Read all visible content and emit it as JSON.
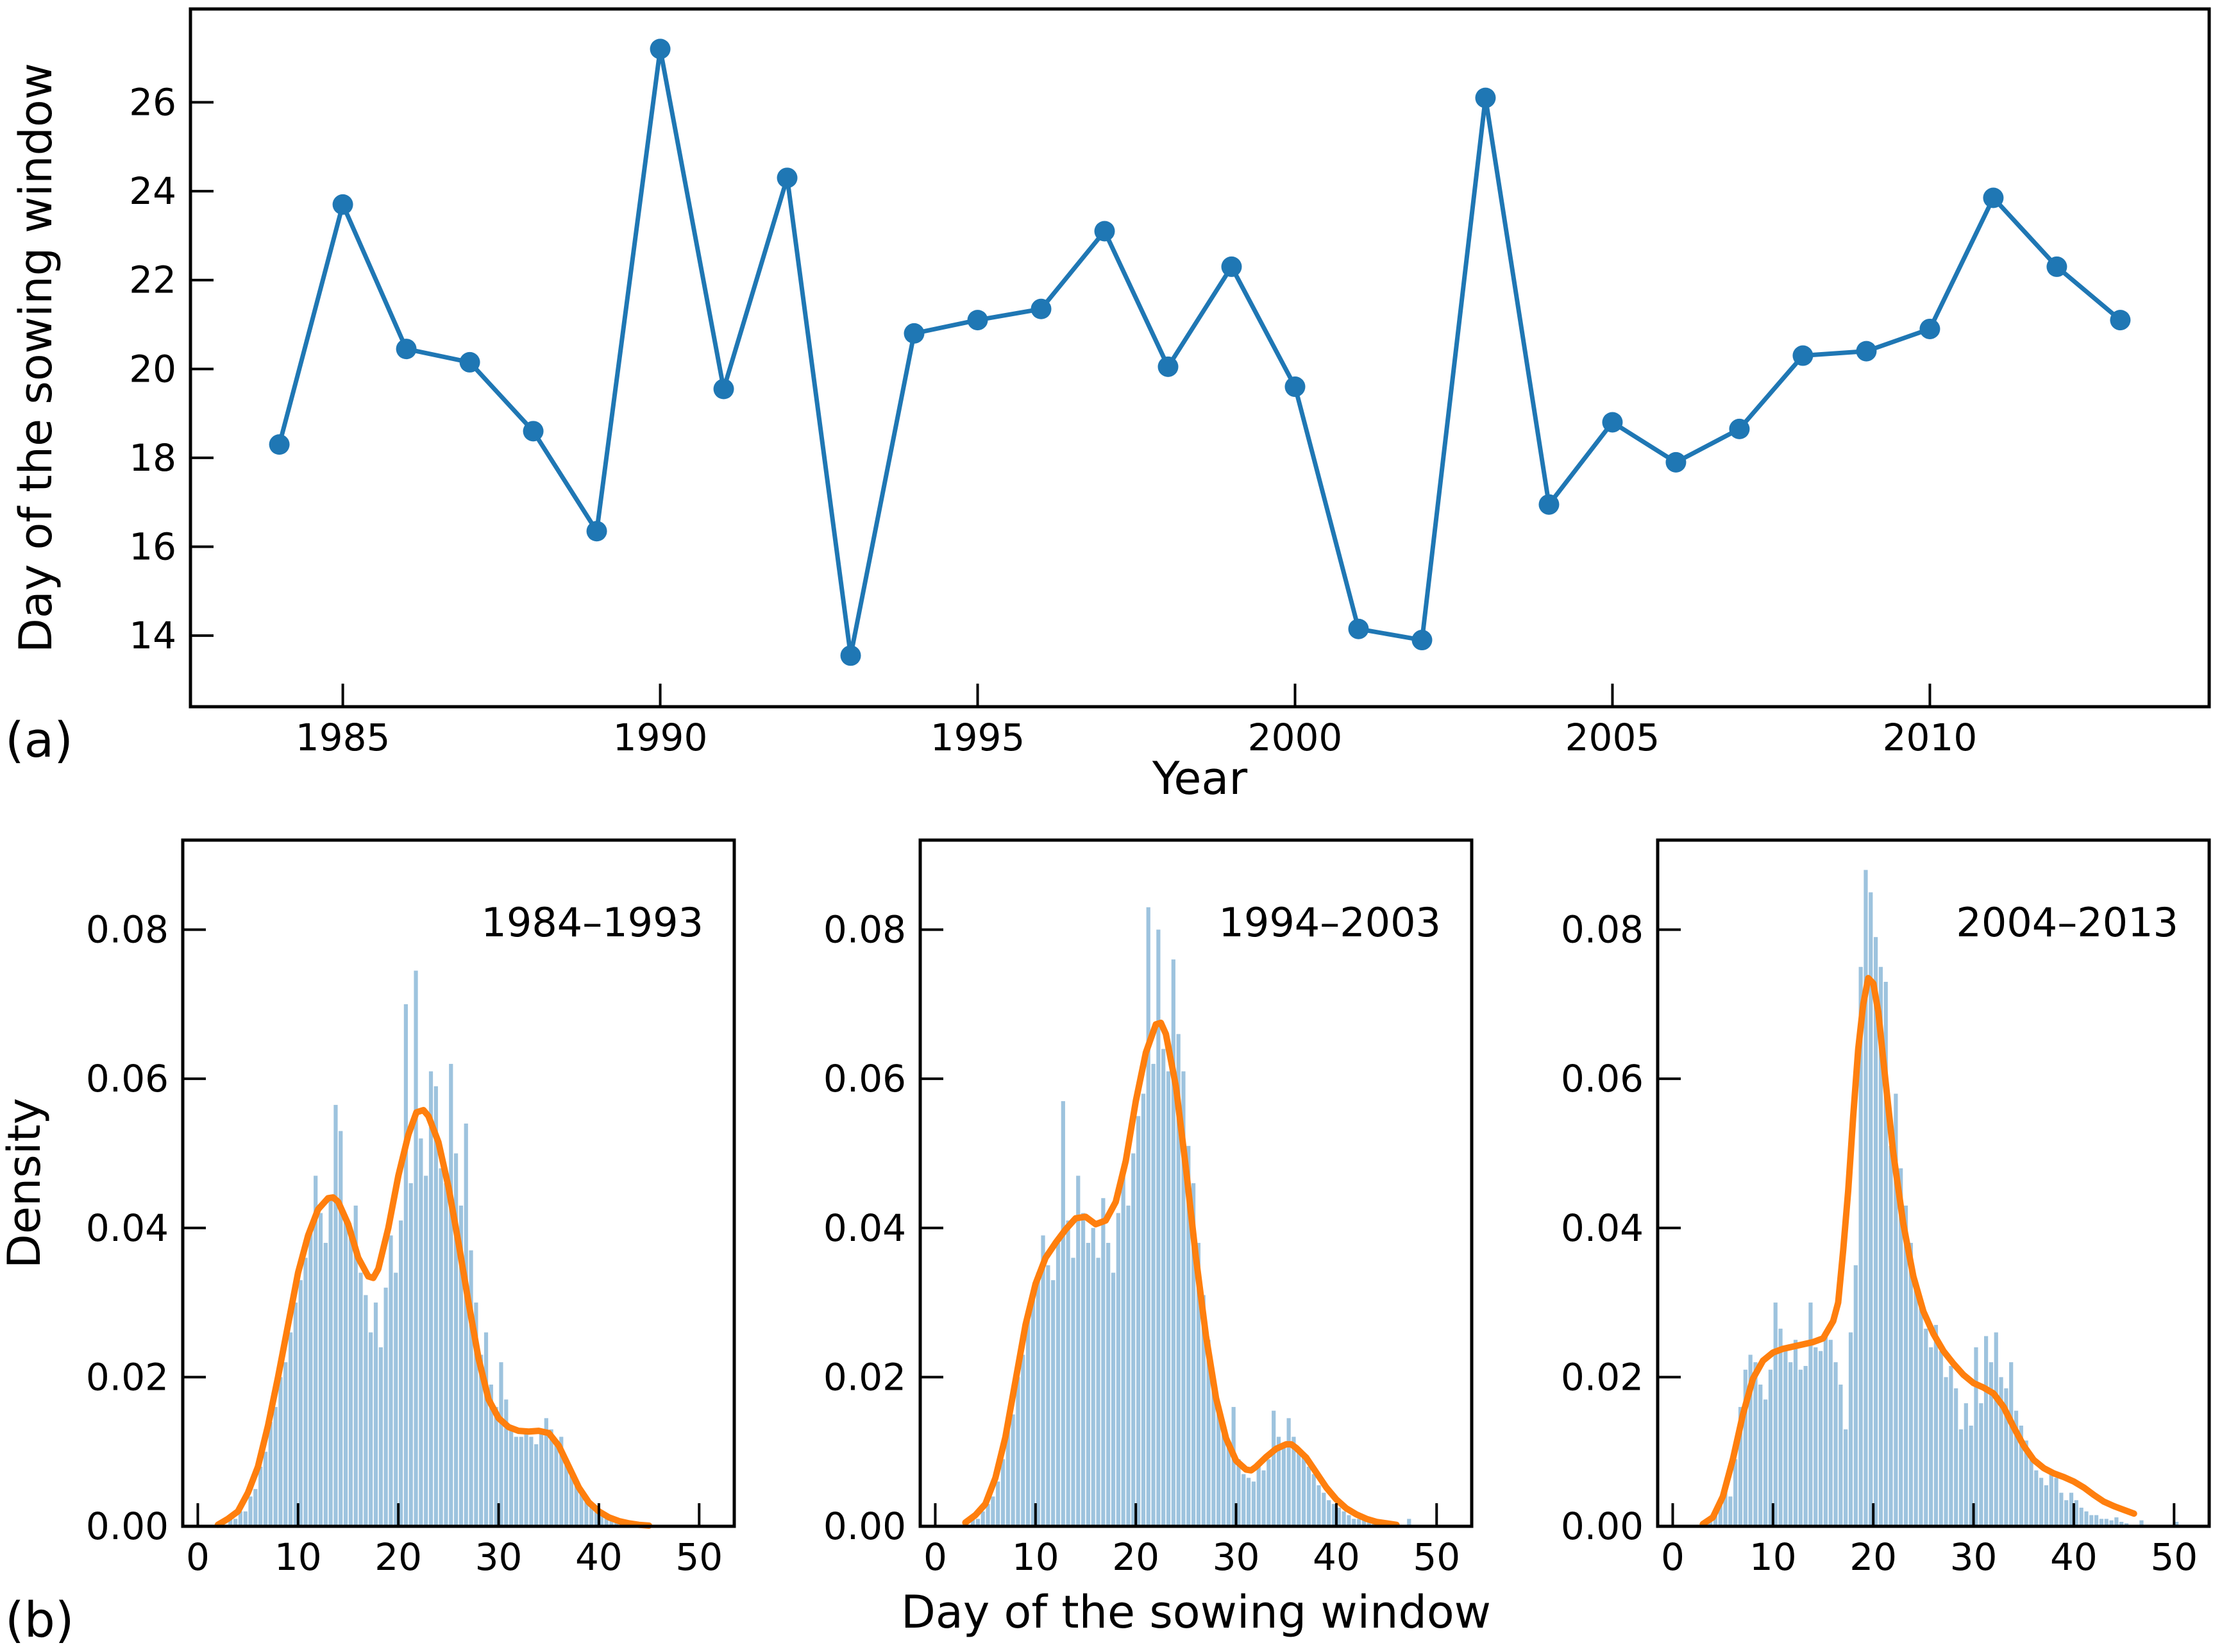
{
  "figure": {
    "panel_a_label": "(a)",
    "panel_b_label": "(b)",
    "shared_xlabel": "Day of the sowing window",
    "colors": {
      "line": "#1f77b4",
      "marker": "#1f77b4",
      "hist_fill": "#9dc3de",
      "kde": "#ff7f0e",
      "axis": "#000000",
      "text": "#000000",
      "background": "#ffffff"
    }
  },
  "chart_data": [
    {
      "id": "panel-a",
      "type": "line",
      "xlabel": "Year",
      "ylabel": "Day of the sowing window",
      "xlim": [
        1982.6,
        2014.4
      ],
      "ylim": [
        12.4,
        28.1
      ],
      "xticks": [
        1985,
        1990,
        1995,
        2000,
        2005,
        2010
      ],
      "yticks": [
        14,
        16,
        18,
        20,
        22,
        24,
        26
      ],
      "x": [
        1984,
        1985,
        1986,
        1987,
        1988,
        1989,
        1990,
        1991,
        1992,
        1993,
        1994,
        1995,
        1996,
        1997,
        1998,
        1999,
        2000,
        2001,
        2002,
        2003,
        2004,
        2005,
        2006,
        2007,
        2008,
        2009,
        2010,
        2011,
        2012,
        2013
      ],
      "y": [
        18.3,
        23.7,
        20.45,
        20.15,
        18.6,
        16.35,
        27.2,
        19.55,
        24.3,
        13.55,
        20.8,
        21.1,
        21.35,
        23.1,
        20.05,
        22.3,
        19.6,
        14.15,
        13.9,
        26.1,
        16.95,
        18.8,
        17.9,
        18.65,
        20.3,
        20.4,
        20.9,
        23.85,
        22.3,
        21.1
      ]
    },
    {
      "id": "panel-b1",
      "type": "histogram+kde",
      "annotation": "1984–1993",
      "ylabel": "Density",
      "xlim": [
        -1.5,
        53.5
      ],
      "ylim": [
        0,
        0.092
      ],
      "xticks": [
        0,
        10,
        20,
        30,
        40,
        50
      ],
      "yticks": [
        0,
        0.02,
        0.04,
        0.06,
        0.08
      ],
      "ytick_labels": [
        "0.00",
        "0.02",
        "0.04",
        "0.06",
        "0.08"
      ],
      "bins_start": 3.0,
      "bin_width": 0.5,
      "densities": [
        0.001,
        0.001,
        0.002,
        0.002,
        0.004,
        0.005,
        0.008,
        0.01,
        0.014,
        0.016,
        0.02,
        0.022,
        0.026,
        0.03,
        0.033,
        0.036,
        0.04,
        0.047,
        0.042,
        0.038,
        0.044,
        0.0565,
        0.053,
        0.041,
        0.039,
        0.043,
        0.034,
        0.031,
        0.026,
        0.03,
        0.024,
        0.032,
        0.039,
        0.034,
        0.041,
        0.07,
        0.046,
        0.0745,
        0.052,
        0.047,
        0.061,
        0.059,
        0.048,
        0.046,
        0.062,
        0.05,
        0.043,
        0.054,
        0.037,
        0.03,
        0.023,
        0.026,
        0.019,
        0.016,
        0.022,
        0.017,
        0.013,
        0.012,
        0.012,
        0.013,
        0.012,
        0.011,
        0.013,
        0.0145,
        0.013,
        0.0115,
        0.012,
        0.009,
        0.0075,
        0.006,
        0.005,
        0.004,
        0.003,
        0.0025,
        0.002,
        0.0015,
        0.001,
        0.001,
        0.0008,
        0.0005,
        0.0005,
        0.0003,
        0.0002,
        0.0002,
        0.0001
      ],
      "kde_x": [
        2,
        3,
        4,
        5,
        6,
        7,
        8,
        9,
        10,
        11,
        12,
        13,
        13.5,
        14,
        15,
        16,
        17,
        17.5,
        18,
        19,
        20,
        21,
        21.8,
        22.5,
        23,
        24,
        25,
        26,
        27,
        28,
        29,
        30,
        31,
        32,
        33,
        34,
        35,
        36,
        37,
        38,
        39,
        40,
        41,
        42,
        43,
        44,
        45
      ],
      "kde_y": [
        0.0002,
        0.001,
        0.002,
        0.0045,
        0.008,
        0.0135,
        0.02,
        0.027,
        0.034,
        0.039,
        0.0425,
        0.044,
        0.0441,
        0.0435,
        0.0405,
        0.036,
        0.0335,
        0.0333,
        0.0345,
        0.04,
        0.047,
        0.0525,
        0.0555,
        0.0558,
        0.055,
        0.0515,
        0.0455,
        0.038,
        0.03,
        0.0225,
        0.017,
        0.0145,
        0.0133,
        0.0128,
        0.0127,
        0.0128,
        0.0125,
        0.0108,
        0.008,
        0.0052,
        0.0032,
        0.002,
        0.0012,
        0.0007,
        0.0004,
        0.0002,
        0.0001
      ]
    },
    {
      "id": "panel-b2",
      "type": "histogram+kde",
      "annotation": "1994–2003",
      "xlim": [
        -1.5,
        53.5
      ],
      "ylim": [
        0,
        0.092
      ],
      "xticks": [
        0,
        10,
        20,
        30,
        40,
        50
      ],
      "yticks": [
        0,
        0.02,
        0.04,
        0.06,
        0.08
      ],
      "ytick_labels": [
        "0.00",
        "0.02",
        "0.04",
        "0.06",
        "0.08"
      ],
      "bins_start": 3.5,
      "bin_width": 0.5,
      "densities": [
        0.001,
        0.001,
        0.002,
        0.003,
        0.004,
        0.006,
        0.009,
        0.013,
        0.015,
        0.02,
        0.023,
        0.028,
        0.031,
        0.034,
        0.039,
        0.035,
        0.033,
        0.038,
        0.057,
        0.041,
        0.036,
        0.047,
        0.042,
        0.038,
        0.04,
        0.036,
        0.044,
        0.038,
        0.034,
        0.042,
        0.048,
        0.043,
        0.05,
        0.055,
        0.058,
        0.083,
        0.062,
        0.08,
        0.064,
        0.061,
        0.076,
        0.066,
        0.061,
        0.051,
        0.046,
        0.038,
        0.031,
        0.025,
        0.02,
        0.016,
        0.0135,
        0.011,
        0.016,
        0.009,
        0.007,
        0.0065,
        0.006,
        0.008,
        0.0075,
        0.009,
        0.0155,
        0.012,
        0.011,
        0.0145,
        0.012,
        0.0105,
        0.0095,
        0.008,
        0.007,
        0.0055,
        0.0045,
        0.0035,
        0.003,
        0.0025,
        0.002,
        0.0015,
        0.001,
        0.001,
        0.0008,
        0.0005,
        0.0004,
        0.0003,
        0.0002,
        0.0002,
        0,
        0,
        0,
        0.001
      ],
      "kde_x": [
        3,
        4,
        5,
        6,
        7,
        8,
        9,
        10,
        11,
        12,
        13,
        14,
        15,
        16,
        17,
        18,
        19,
        20,
        21,
        22,
        22.5,
        23,
        24,
        25,
        26,
        27,
        28,
        29,
        30,
        31,
        31.5,
        32,
        33,
        34,
        35,
        35.5,
        36,
        37,
        38,
        39,
        40,
        41,
        42,
        43,
        44,
        45,
        46
      ],
      "kde_y": [
        0.0005,
        0.0015,
        0.003,
        0.0065,
        0.012,
        0.0195,
        0.027,
        0.0325,
        0.036,
        0.038,
        0.0398,
        0.0413,
        0.0415,
        0.0405,
        0.041,
        0.0435,
        0.049,
        0.057,
        0.0635,
        0.0673,
        0.0675,
        0.066,
        0.059,
        0.048,
        0.036,
        0.0255,
        0.0172,
        0.0118,
        0.0088,
        0.0076,
        0.0075,
        0.008,
        0.0093,
        0.0104,
        0.011,
        0.011,
        0.0105,
        0.0092,
        0.0072,
        0.0052,
        0.0036,
        0.0024,
        0.0016,
        0.001,
        0.0006,
        0.0004,
        0.0002
      ]
    },
    {
      "id": "panel-b3",
      "type": "histogram+kde",
      "annotation": "2004–2013",
      "xlim": [
        -1.5,
        53.5
      ],
      "ylim": [
        0,
        0.092
      ],
      "xticks": [
        0,
        10,
        20,
        30,
        40,
        50
      ],
      "yticks": [
        0,
        0.02,
        0.04,
        0.06,
        0.08
      ],
      "ytick_labels": [
        "0.00",
        "0.02",
        "0.04",
        "0.06",
        "0.08"
      ],
      "bins_start": 3.5,
      "bin_width": 0.5,
      "densities": [
        0.001,
        0.002,
        0.003,
        0.005,
        0.004,
        0.009,
        0.016,
        0.021,
        0.023,
        0.022,
        0.019,
        0.017,
        0.021,
        0.03,
        0.0265,
        0.024,
        0.022,
        0.025,
        0.021,
        0.0215,
        0.03,
        0.024,
        0.0235,
        0.026,
        0.025,
        0.022,
        0.019,
        0.013,
        0.026,
        0.035,
        0.075,
        0.088,
        0.085,
        0.079,
        0.075,
        0.073,
        0.051,
        0.058,
        0.048,
        0.043,
        0.038,
        0.033,
        0.03,
        0.0265,
        0.024,
        0.027,
        0.0235,
        0.02,
        0.0215,
        0.0185,
        0.013,
        0.0165,
        0.0135,
        0.024,
        0.0165,
        0.0255,
        0.022,
        0.026,
        0.02,
        0.0185,
        0.022,
        0.0155,
        0.0135,
        0.0115,
        0.009,
        0.0075,
        0.0065,
        0.0055,
        0.0075,
        0.0065,
        0.0045,
        0.0035,
        0.0045,
        0.0035,
        0.0025,
        0.002,
        0.0015,
        0.0015,
        0.001,
        0.001,
        0.0008,
        0.0012,
        0.0006,
        0.0004,
        0,
        0,
        0.0008,
        0,
        0,
        0,
        0,
        0,
        0,
        0.0006
      ],
      "kde_x": [
        3,
        4,
        5,
        6,
        7,
        8,
        9,
        10,
        11,
        12,
        13,
        14,
        15,
        16,
        16.5,
        17,
        17.5,
        18,
        18.5,
        19,
        19.5,
        20,
        20.5,
        21,
        22,
        23,
        24,
        25,
        26,
        27,
        28,
        29,
        30,
        31,
        32,
        33,
        34,
        35,
        36,
        37,
        38,
        39,
        40,
        41,
        42,
        43,
        44,
        45,
        46
      ],
      "kde_y": [
        0.0003,
        0.0012,
        0.004,
        0.009,
        0.015,
        0.0198,
        0.0222,
        0.0233,
        0.0238,
        0.0241,
        0.0244,
        0.0247,
        0.0252,
        0.0275,
        0.03,
        0.037,
        0.045,
        0.055,
        0.064,
        0.07,
        0.0735,
        0.0728,
        0.069,
        0.0625,
        0.05,
        0.0405,
        0.0335,
        0.0288,
        0.0258,
        0.0235,
        0.0218,
        0.0203,
        0.0192,
        0.0186,
        0.0178,
        0.016,
        0.0133,
        0.0108,
        0.0089,
        0.0078,
        0.0071,
        0.0066,
        0.006,
        0.0052,
        0.0042,
        0.0033,
        0.0027,
        0.0022,
        0.0017
      ]
    }
  ]
}
